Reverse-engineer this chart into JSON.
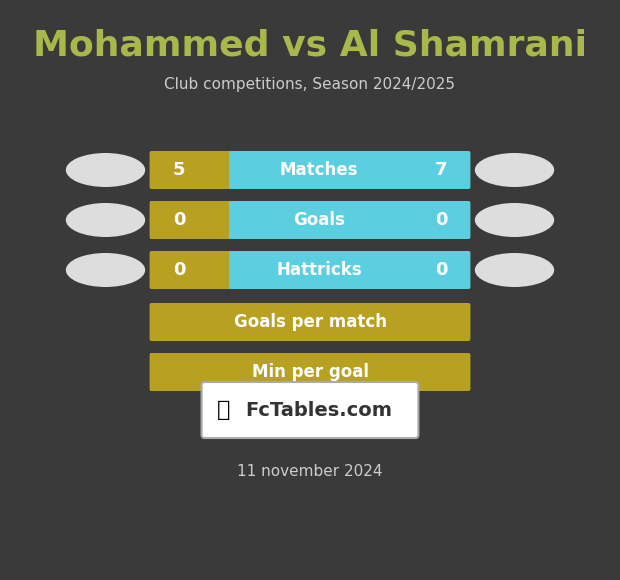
{
  "title": "Mohammed vs Al Shamrani",
  "subtitle": "Club competitions, Season 2024/2025",
  "date": "11 november 2024",
  "background_color": "#3a3a3a",
  "title_color": "#a8b84b",
  "subtitle_color": "#cccccc",
  "date_color": "#cccccc",
  "rows": [
    {
      "label": "Matches",
      "left_val": "5",
      "right_val": "7",
      "has_cyan": true
    },
    {
      "label": "Goals",
      "left_val": "0",
      "right_val": "0",
      "has_cyan": true
    },
    {
      "label": "Hattricks",
      "left_val": "0",
      "right_val": "0",
      "has_cyan": true
    },
    {
      "label": "Goals per match",
      "left_val": "",
      "right_val": "",
      "has_cyan": false
    },
    {
      "label": "Min per goal",
      "left_val": "",
      "right_val": "",
      "has_cyan": false
    }
  ],
  "bar_color_gold": "#b8a020",
  "bar_color_cyan": "#5bcfdf",
  "bar_text_color": "#ffffff",
  "val_text_color": "#ffffff",
  "ellipse_color": "#dddddd",
  "logo_box_color": "#ffffff",
  "logo_text": "FcTables.com",
  "logo_text_color": "#333333"
}
